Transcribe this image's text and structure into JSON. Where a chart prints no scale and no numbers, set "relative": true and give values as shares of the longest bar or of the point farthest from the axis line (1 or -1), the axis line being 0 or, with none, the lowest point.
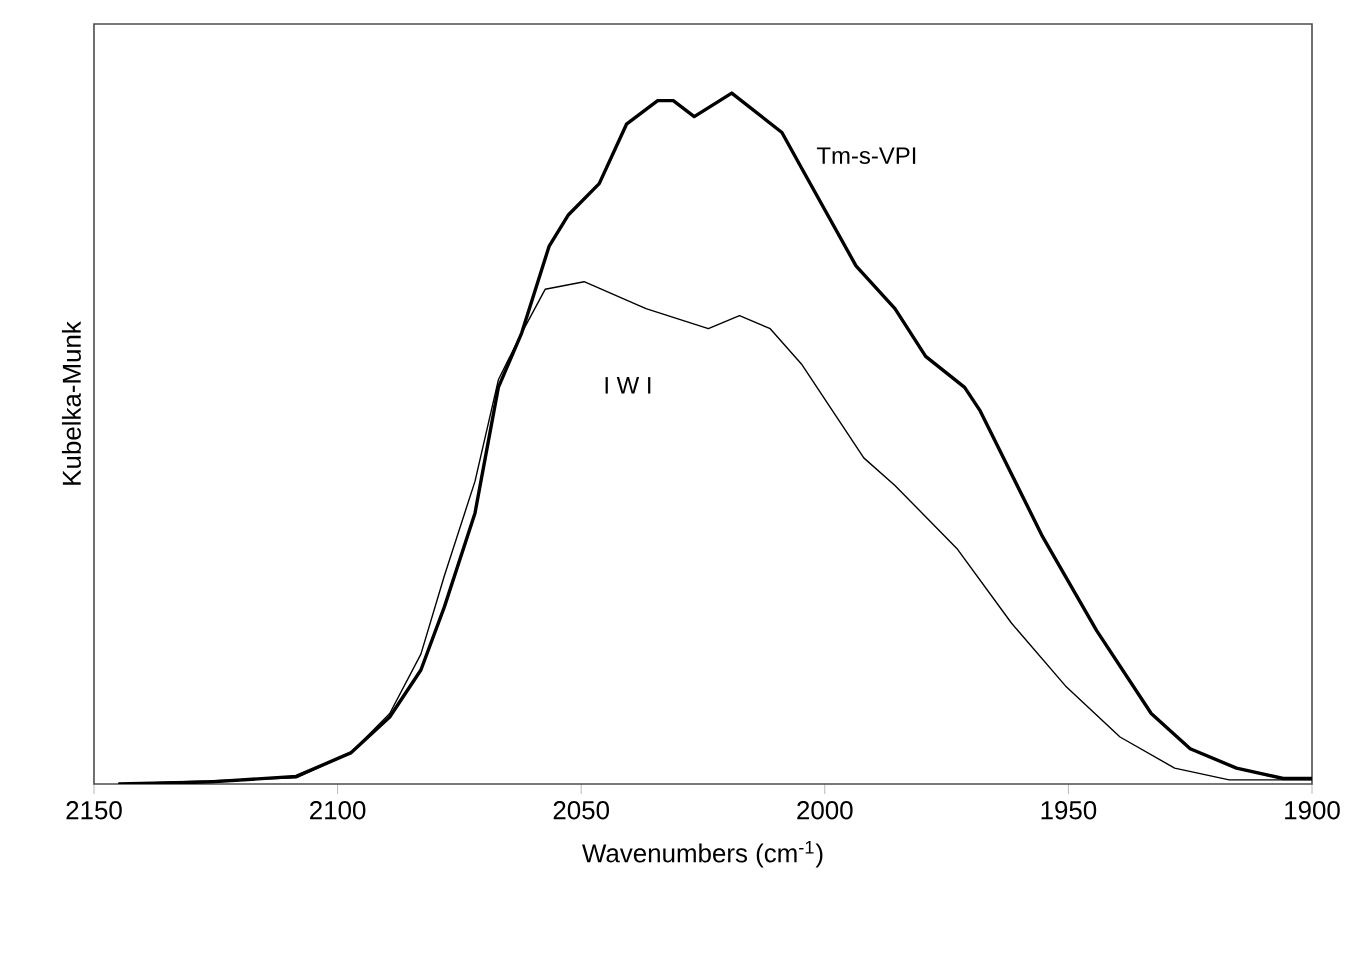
{
  "chart_data": {
    "type": "line",
    "relative": true,
    "xlabel": "Wavenumbers (cm$^{-1}$)",
    "ylabel": "Kubelka-Munk",
    "xlim": [
      2150,
      1900
    ],
    "xticks": [
      2150,
      2100,
      2050,
      2000,
      1950,
      1900
    ],
    "grid": false,
    "marker": "none",
    "series": [
      {
        "name": "Tm-s-VPI",
        "color": "#000000",
        "x": [
          2145,
          2126,
          2108.5,
          2097.3,
          2089.3,
          2082.9,
          2078.1,
          2071.8,
          2067,
          2062.2,
          2056.6,
          2052.6,
          2046.3,
          2040.7,
          2034.3,
          2031.1,
          2026.8,
          2019.1,
          2008.8,
          2004.8,
          1993.6,
          1985.6,
          1979.3,
          1971.3,
          1968.1,
          1955.3,
          1944.2,
          1933,
          1925,
          1915.5,
          1905.9,
          1900
        ],
        "values": [
          0,
          0.003,
          0.011,
          0.045,
          0.097,
          0.165,
          0.256,
          0.392,
          0.574,
          0.653,
          0.778,
          0.824,
          0.869,
          0.955,
          0.989,
          0.989,
          0.966,
          1,
          0.943,
          0.892,
          0.75,
          0.688,
          0.619,
          0.574,
          0.54,
          0.358,
          0.222,
          0.102,
          0.051,
          0.023,
          0.008,
          0.008
        ]
      },
      {
        "name": "I W I",
        "color": "#000000",
        "x": [
          2145,
          2108.5,
          2097.3,
          2089.3,
          2082.9,
          2078.1,
          2071.8,
          2067,
          2062.2,
          2057.4,
          2049.4,
          2036.7,
          2023.9,
          2017.5,
          2011.2,
          2004.8,
          1992,
          1985.6,
          1972.9,
          1961.7,
          1950.6,
          1939.4,
          1928.2,
          1917,
          1900
        ],
        "values": [
          0,
          0.009,
          0.045,
          0.102,
          0.188,
          0.301,
          0.438,
          0.585,
          0.653,
          0.716,
          0.727,
          0.688,
          0.659,
          0.678,
          0.659,
          0.608,
          0.472,
          0.432,
          0.341,
          0.233,
          0.142,
          0.068,
          0.023,
          0.006,
          0.006
        ]
      }
    ]
  }
}
